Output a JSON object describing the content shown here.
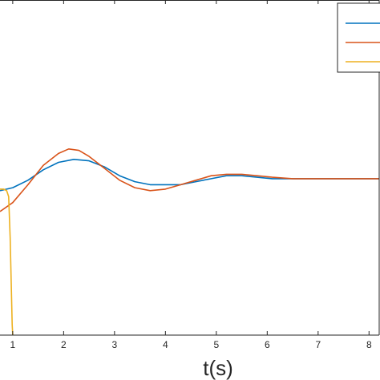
{
  "chart_data": {
    "type": "line",
    "xlabel": "t(s)",
    "ylabel": "",
    "title": "",
    "xlim": [
      0.75,
      8.2
    ],
    "ylim": [
      -0.95,
      1.3
    ],
    "xticks": [
      1,
      2,
      3,
      4,
      5,
      6,
      7,
      8
    ],
    "xtick_labels": [
      "1",
      "2",
      "3",
      "4",
      "5",
      "6",
      "7",
      "8"
    ],
    "grid": false,
    "legend": {
      "placement": "top-right",
      "entries_shown_without_text": 3
    },
    "series": [
      {
        "color": "#0072BD",
        "x": [
          0.75,
          1.0,
          1.3,
          1.6,
          1.9,
          2.2,
          2.5,
          2.8,
          3.1,
          3.4,
          3.7,
          4.0,
          4.3,
          4.6,
          4.9,
          5.2,
          5.5,
          5.8,
          6.1,
          6.5,
          7.0,
          7.5,
          8.0,
          8.2
        ],
        "y": [
          0.02,
          0.04,
          0.09,
          0.16,
          0.21,
          0.23,
          0.22,
          0.18,
          0.12,
          0.08,
          0.06,
          0.06,
          0.06,
          0.08,
          0.1,
          0.12,
          0.12,
          0.11,
          0.1,
          0.1,
          0.1,
          0.1,
          0.1,
          0.1
        ]
      },
      {
        "color": "#D95319",
        "x": [
          0.75,
          1.0,
          1.3,
          1.6,
          1.9,
          2.1,
          2.3,
          2.5,
          2.8,
          3.1,
          3.4,
          3.7,
          4.0,
          4.3,
          4.6,
          4.9,
          5.2,
          5.5,
          5.8,
          6.1,
          6.5,
          7.0,
          7.5,
          8.0,
          8.2
        ],
        "y": [
          -0.12,
          -0.06,
          0.06,
          0.19,
          0.27,
          0.3,
          0.29,
          0.25,
          0.17,
          0.09,
          0.04,
          0.02,
          0.03,
          0.06,
          0.09,
          0.12,
          0.13,
          0.13,
          0.12,
          0.11,
          0.1,
          0.1,
          0.1,
          0.1,
          0.1
        ]
      },
      {
        "color": "#EDB120",
        "x": [
          0.75,
          0.82,
          0.88,
          0.92,
          0.95,
          0.97,
          0.99,
          1.0,
          1.0
        ],
        "y": [
          0.03,
          0.03,
          0.02,
          -0.02,
          -0.3,
          -0.6,
          -0.88,
          -0.95,
          -0.95
        ]
      }
    ]
  }
}
